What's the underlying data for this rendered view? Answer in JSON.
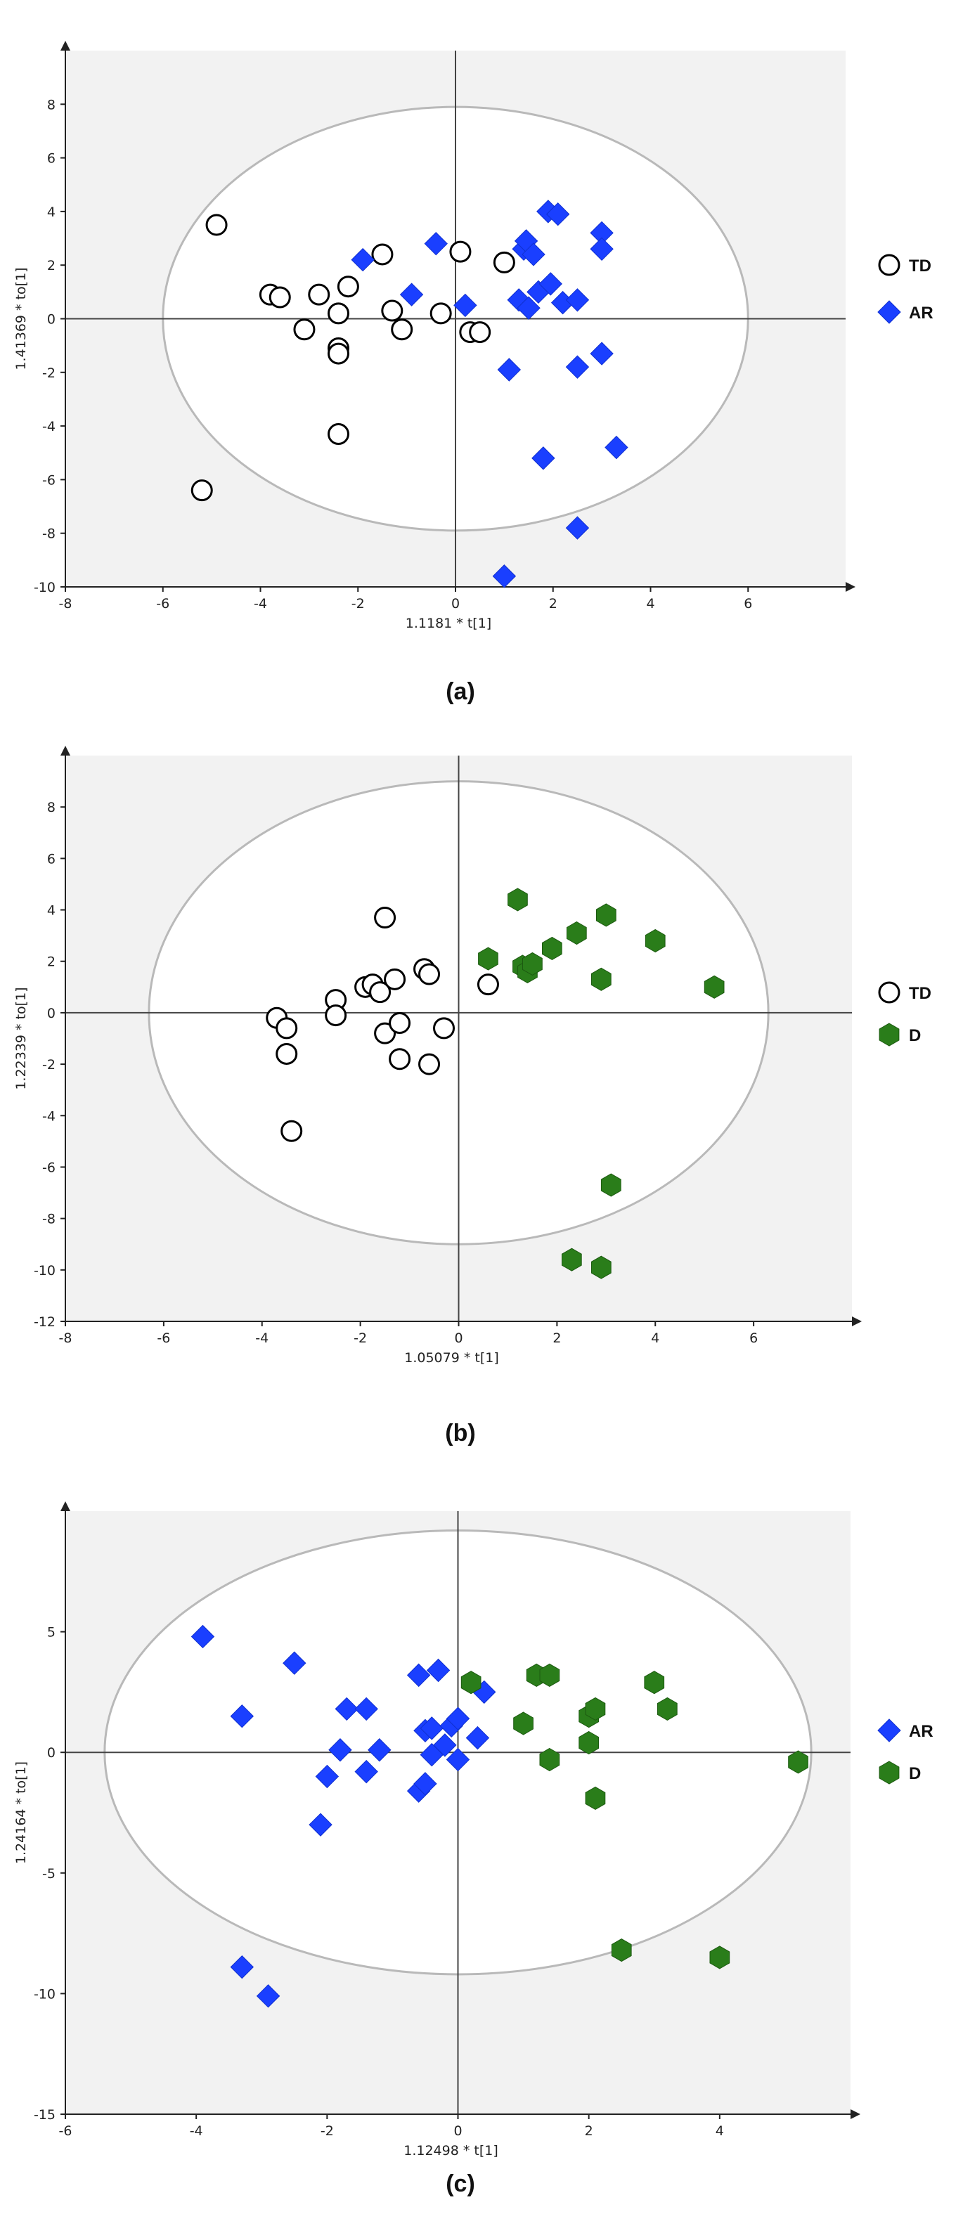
{
  "chart_data": [
    {
      "type": "scatter",
      "panel_label": "(a)",
      "xlabel": "1.1181 * t[1]",
      "ylabel": "1.41369 * to[1]",
      "xlim": [
        -8,
        8
      ],
      "ylim": [
        -10,
        10
      ],
      "xticks": [
        -8,
        -6,
        -4,
        -2,
        0,
        2,
        4,
        6
      ],
      "yticks": [
        -10,
        -8,
        -6,
        -4,
        -2,
        0,
        2,
        4,
        6,
        8
      ],
      "ellipse": {
        "center": [
          0,
          0
        ],
        "rx": 6,
        "ry": 7.9
      },
      "legend_position": "right",
      "series": [
        {
          "name": "TD",
          "marker": "circle",
          "color": "#ffffff",
          "points": [
            [
              -4.9,
              3.5
            ],
            [
              -5.2,
              -6.4
            ],
            [
              -3.8,
              0.9
            ],
            [
              -3.6,
              0.8
            ],
            [
              -3.1,
              -0.4
            ],
            [
              -2.8,
              0.9
            ],
            [
              -2.4,
              0.2
            ],
            [
              -2.4,
              -1.1
            ],
            [
              -2.4,
              -1.3
            ],
            [
              -2.4,
              -4.3
            ],
            [
              -2.2,
              1.2
            ],
            [
              -1.5,
              2.4
            ],
            [
              -1.3,
              0.3
            ],
            [
              -1.1,
              -0.4
            ],
            [
              -0.3,
              0.2
            ],
            [
              0.1,
              2.5
            ],
            [
              0.3,
              -0.5
            ],
            [
              0.5,
              -0.5
            ],
            [
              1.0,
              2.1
            ]
          ]
        },
        {
          "name": "AR",
          "marker": "diamond",
          "color": "#1a3fff",
          "points": [
            [
              -1.9,
              2.2
            ],
            [
              -0.9,
              0.9
            ],
            [
              -0.4,
              2.8
            ],
            [
              0.2,
              0.5
            ],
            [
              1.1,
              -1.9
            ],
            [
              1.0,
              -9.6
            ],
            [
              1.3,
              0.7
            ],
            [
              1.4,
              2.6
            ],
            [
              1.45,
              2.9
            ],
            [
              1.5,
              0.4
            ],
            [
              1.6,
              2.4
            ],
            [
              1.7,
              1.0
            ],
            [
              1.8,
              -5.2
            ],
            [
              1.9,
              4.0
            ],
            [
              1.95,
              1.3
            ],
            [
              2.1,
              3.9
            ],
            [
              2.2,
              0.6
            ],
            [
              2.5,
              0.7
            ],
            [
              2.5,
              -1.8
            ],
            [
              2.5,
              -7.8
            ],
            [
              3.0,
              3.2
            ],
            [
              3.0,
              2.6
            ],
            [
              3.0,
              -1.3
            ],
            [
              3.3,
              -4.8
            ]
          ]
        }
      ]
    },
    {
      "type": "scatter",
      "panel_label": "(b)",
      "xlabel": "1.05079 * t[1]",
      "ylabel": "1.22339 * to[1]",
      "xlim": [
        -8,
        8
      ],
      "ylim": [
        -12,
        10
      ],
      "xticks": [
        -8,
        -6,
        -4,
        -2,
        0,
        2,
        4,
        6
      ],
      "yticks": [
        -12,
        -10,
        -8,
        -6,
        -4,
        -2,
        0,
        2,
        4,
        6,
        8
      ],
      "ellipse": {
        "center": [
          0,
          0
        ],
        "rx": 6.3,
        "ry": 9
      },
      "legend_position": "right",
      "series": [
        {
          "name": "TD",
          "marker": "circle",
          "color": "#ffffff",
          "points": [
            [
              -3.7,
              -0.2
            ],
            [
              -3.5,
              -0.6
            ],
            [
              -3.5,
              -1.6
            ],
            [
              -3.4,
              -4.6
            ],
            [
              -2.5,
              0.5
            ],
            [
              -2.5,
              -0.1
            ],
            [
              -1.9,
              1.0
            ],
            [
              -1.75,
              1.1
            ],
            [
              -1.6,
              0.8
            ],
            [
              -1.5,
              3.7
            ],
            [
              -1.5,
              -0.8
            ],
            [
              -1.3,
              1.3
            ],
            [
              -1.2,
              -0.4
            ],
            [
              -1.2,
              -1.8
            ],
            [
              -0.7,
              1.7
            ],
            [
              -0.6,
              1.5
            ],
            [
              -0.6,
              -2.0
            ],
            [
              -0.3,
              -0.6
            ],
            [
              0.6,
              1.1
            ]
          ]
        },
        {
          "name": "D",
          "marker": "hexagon",
          "color": "#2a7d1a",
          "points": [
            [
              0.6,
              2.1
            ],
            [
              1.2,
              4.4
            ],
            [
              1.3,
              1.8
            ],
            [
              1.4,
              1.6
            ],
            [
              1.5,
              1.9
            ],
            [
              1.9,
              2.5
            ],
            [
              2.3,
              -9.6
            ],
            [
              2.4,
              3.1
            ],
            [
              2.9,
              1.3
            ],
            [
              2.9,
              -9.9
            ],
            [
              3.0,
              3.8
            ],
            [
              3.1,
              -6.7
            ],
            [
              4.0,
              2.8
            ],
            [
              5.2,
              1.0
            ]
          ]
        }
      ]
    },
    {
      "type": "scatter",
      "panel_label": "(c)",
      "xlabel": "1.12498 * t[1]",
      "ylabel": "1.24164 * to[1]",
      "xlim": [
        -6,
        6
      ],
      "ylim": [
        -15,
        10
      ],
      "xticks": [
        -6,
        -4,
        -2,
        0,
        2,
        4
      ],
      "yticks": [
        -15,
        -10,
        -5,
        0,
        5
      ],
      "ellipse": {
        "center": [
          0,
          0
        ],
        "rx": 5.4,
        "ry": 9.2
      },
      "legend_position": "right",
      "series": [
        {
          "name": "AR",
          "marker": "diamond",
          "color": "#1a3fff",
          "points": [
            [
              -3.9,
              4.8
            ],
            [
              -3.3,
              1.5
            ],
            [
              -3.3,
              -8.9
            ],
            [
              -2.5,
              3.7
            ],
            [
              -2.9,
              -10.1
            ],
            [
              -2.0,
              -1.0
            ],
            [
              -2.1,
              -3.0
            ],
            [
              -1.8,
              0.1
            ],
            [
              -1.7,
              1.8
            ],
            [
              -1.4,
              1.8
            ],
            [
              -1.4,
              -0.8
            ],
            [
              -1.2,
              0.1
            ],
            [
              -0.6,
              3.2
            ],
            [
              -0.6,
              -1.6
            ],
            [
              -0.5,
              -1.3
            ],
            [
              -0.5,
              0.9
            ],
            [
              -0.4,
              1.0
            ],
            [
              -0.4,
              -0.1
            ],
            [
              -0.3,
              3.4
            ],
            [
              -0.2,
              0.3
            ],
            [
              -0.1,
              1.1
            ],
            [
              0.0,
              1.4
            ],
            [
              0.0,
              -0.3
            ],
            [
              0.3,
              0.6
            ],
            [
              0.4,
              2.5
            ]
          ]
        },
        {
          "name": "D",
          "marker": "hexagon",
          "color": "#2a7d1a",
          "points": [
            [
              0.2,
              2.9
            ],
            [
              1.0,
              1.2
            ],
            [
              1.2,
              3.2
            ],
            [
              1.4,
              3.2
            ],
            [
              1.4,
              -0.3
            ],
            [
              2.0,
              0.4
            ],
            [
              2.0,
              1.5
            ],
            [
              2.1,
              1.8
            ],
            [
              2.1,
              -1.9
            ],
            [
              2.5,
              -8.2
            ],
            [
              3.0,
              2.9
            ],
            [
              3.2,
              1.8
            ],
            [
              4.0,
              -8.5
            ],
            [
              5.2,
              -0.4
            ]
          ]
        }
      ]
    }
  ]
}
